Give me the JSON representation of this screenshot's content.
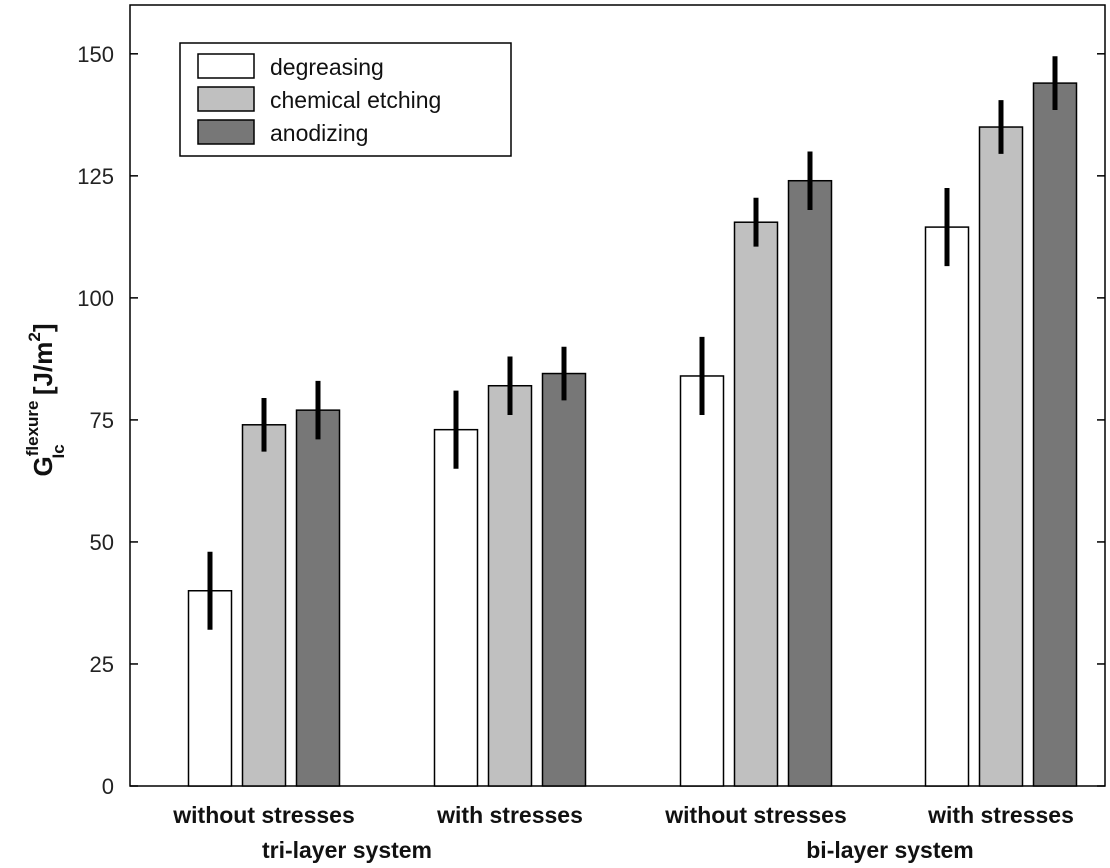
{
  "chart_data": {
    "type": "bar",
    "categories": [
      "without stresses",
      "with stresses",
      "without stresses",
      "with stresses"
    ],
    "groups": [
      {
        "label": "tri-layer system",
        "categories": [
          0,
          1
        ]
      },
      {
        "label": "bi-layer system",
        "categories": [
          2,
          3
        ]
      }
    ],
    "series": [
      {
        "name": "degreasing",
        "color": "#ffffff",
        "values": [
          40,
          73,
          84,
          114.5
        ],
        "errors": [
          8,
          8,
          8,
          8
        ]
      },
      {
        "name": "chemical etching",
        "color": "#c0c0c0",
        "values": [
          74,
          82,
          115.5,
          135
        ],
        "errors": [
          5.5,
          6,
          5,
          5.5
        ]
      },
      {
        "name": "anodizing",
        "color": "#777777",
        "values": [
          77,
          84.5,
          124,
          144
        ],
        "errors": [
          6,
          5.5,
          6,
          5.5
        ]
      }
    ],
    "ylabel": {
      "main": "G",
      "sup": "flexure",
      "sub": "Ic",
      "unit": "[J/m",
      "unit_sup": "2",
      "unit_end": "]"
    },
    "ylim": [
      0,
      160
    ],
    "yticks": [
      "0",
      "25",
      "50",
      "75",
      "100",
      "125",
      "150"
    ],
    "legend_position": "top-left",
    "grid": false
  }
}
